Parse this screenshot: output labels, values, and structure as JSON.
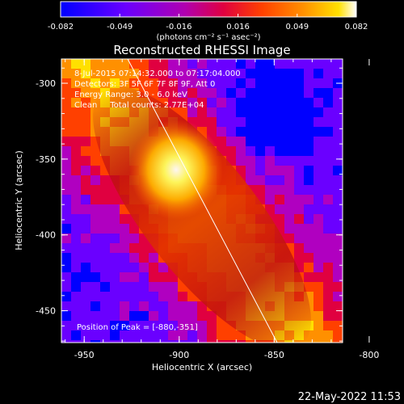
{
  "colorbar": {
    "tick_labels": [
      "-0.082",
      "-0.049",
      "-0.016",
      "0.016",
      "0.049",
      "0.082"
    ],
    "units_label": "(photons cm⁻² s⁻¹ asec⁻²)"
  },
  "image": {
    "title": "Reconstructed RHESSI Image",
    "info_lines": [
      " 8-Jul-2015 07:14:32.000 to 07:17:04.000",
      "Detectors: 3F 5F 6F 7F 8F 9F, Att 0",
      "Energy Range: 3.0 - 6.0 keV",
      "Clean     Total counts: 2.77E+04"
    ],
    "peak_text": "Position of Peak = [-880,-351]",
    "timestamp": "22-May-2022 11:53"
  },
  "axes": {
    "xlabel": "Heliocentric X (arcsec)",
    "ylabel": "Heliocentric Y (arcsec)",
    "x_ticks": [
      "-950",
      "-900",
      "-850",
      "-800"
    ],
    "y_ticks": [
      "-300",
      "-350",
      "-400",
      "-450"
    ],
    "x_range": [
      -962,
      -814
    ],
    "y_range": [
      -471,
      -284
    ]
  },
  "colors": {
    "background": "#000000",
    "text": "#ffffff",
    "colormap": [
      "#0000ff",
      "#6a00ff",
      "#b000c0",
      "#e00040",
      "#ff4000",
      "#ff9000",
      "#ffe000",
      "#ffffff"
    ]
  }
}
